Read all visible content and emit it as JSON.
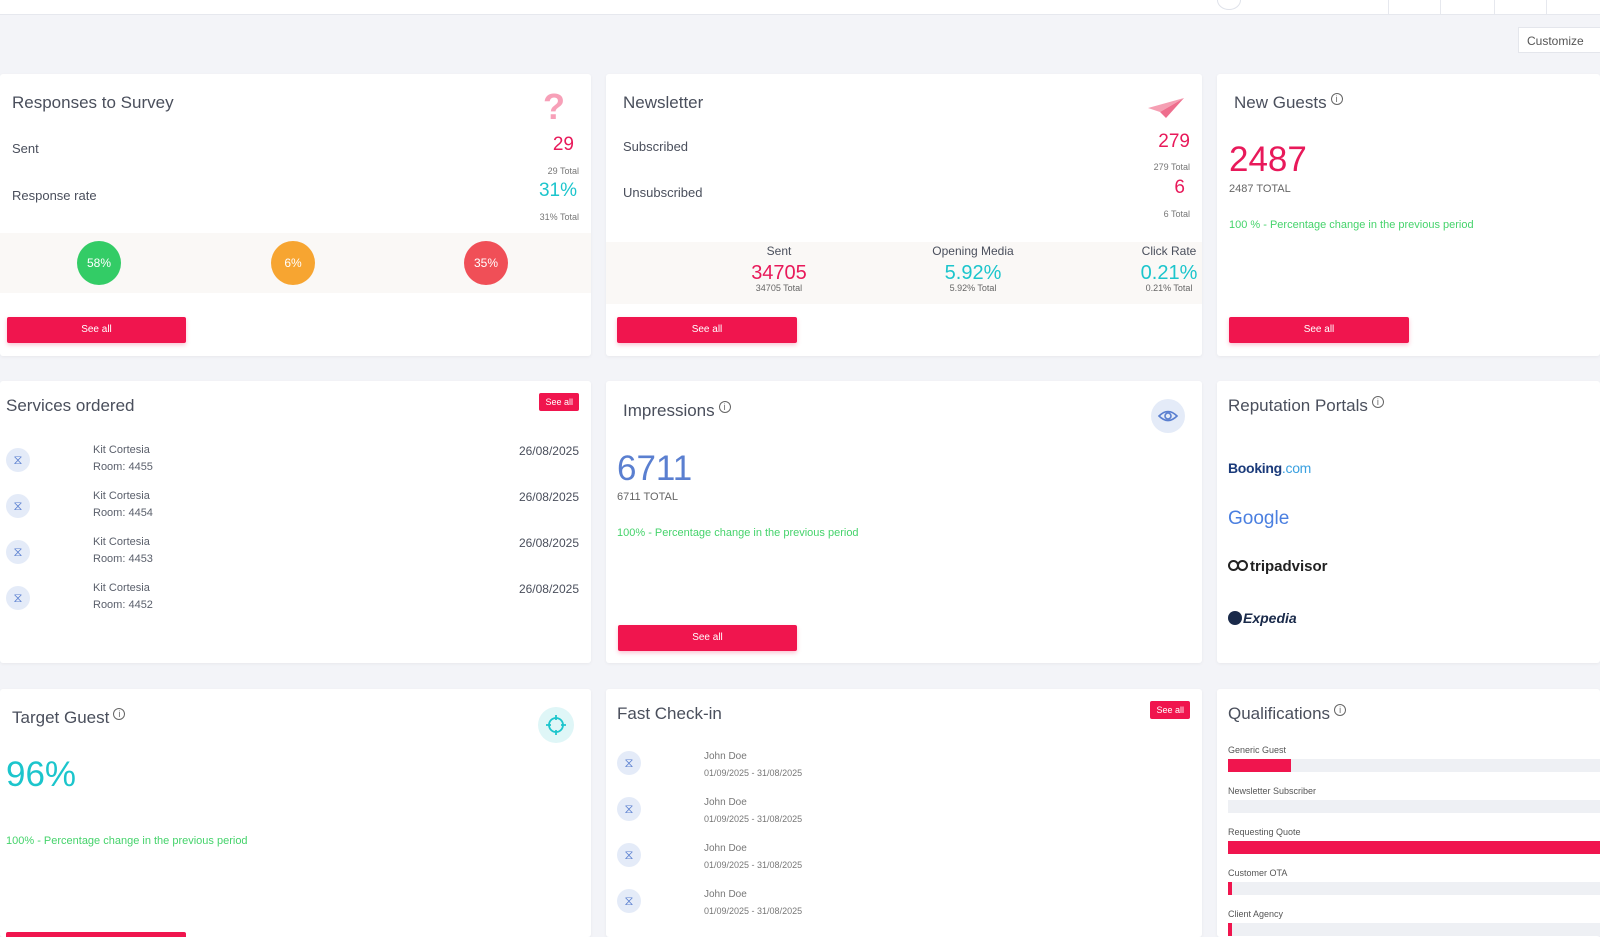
{
  "toolbar": {
    "customize_label": "Customize"
  },
  "survey": {
    "title": "Responses to Survey",
    "icon": "question-icon",
    "sent_label": "Sent",
    "sent_value": "29",
    "sent_total": "29 Total",
    "rate_label": "Response rate",
    "rate_value": "31%",
    "rate_total": "31% Total",
    "circles": [
      {
        "label": "58%",
        "color": "#33cc66"
      },
      {
        "label": "6%",
        "color": "#f7a531"
      },
      {
        "label": "35%",
        "color": "#f04f57"
      }
    ],
    "see_all": "See all"
  },
  "newsletter": {
    "title": "Newsletter",
    "icon": "paper-plane-icon",
    "subscribed_label": "Subscribed",
    "subscribed_value": "279",
    "subscribed_total": "279 Total",
    "unsubscribed_label": "Unsubscribed",
    "unsubscribed_value": "6",
    "unsubscribed_total": "6 Total",
    "stats": [
      {
        "label": "Sent",
        "value": "34705",
        "sub": "34705 Total",
        "color": "#e8195a"
      },
      {
        "label": "Opening Media",
        "value": "5.92%",
        "sub": "5.92% Total",
        "color": "#1cc5cc"
      },
      {
        "label": "Click Rate",
        "value": "0.21%",
        "sub": "0.21% Total",
        "color": "#1cc5cc"
      }
    ],
    "see_all": "See all"
  },
  "new_guests": {
    "title": "New Guests",
    "value": "2487",
    "total": "2487 TOTAL",
    "change": "100 % - Percentage change in the previous period",
    "see_all": "See all"
  },
  "services": {
    "title": "Services ordered",
    "see_all": "See all",
    "rows": [
      {
        "name": "Kit Cortesia",
        "room": "Room: 4455",
        "date": "26/08/2025"
      },
      {
        "name": "Kit Cortesia",
        "room": "Room: 4454",
        "date": "26/08/2025"
      },
      {
        "name": "Kit Cortesia",
        "room": "Room: 4453",
        "date": "26/08/2025"
      },
      {
        "name": "Kit Cortesia",
        "room": "Room: 4452",
        "date": "26/08/2025"
      }
    ]
  },
  "impressions": {
    "title": "Impressions",
    "icon": "eye-icon",
    "value": "6711",
    "total": "6711 TOTAL",
    "change": "100% - Percentage change in the previous period",
    "see_all": "See all"
  },
  "reputation": {
    "title": "Reputation Portals",
    "portals": [
      {
        "name": "Booking",
        "suffix": ".com"
      },
      {
        "name": "Google"
      },
      {
        "name": "tripadvisor"
      },
      {
        "name": "Expedia"
      }
    ]
  },
  "target": {
    "title": "Target Guest",
    "icon": "crosshair-icon",
    "value": "96%",
    "change": "100% - Percentage change in the previous period"
  },
  "checkin": {
    "title": "Fast Check-in",
    "see_all": "See all",
    "rows": [
      {
        "name": "John Doe",
        "dates": "01/09/2025 - 31/08/2025"
      },
      {
        "name": "John Doe",
        "dates": "01/09/2025 - 31/08/2025"
      },
      {
        "name": "John Doe",
        "dates": "01/09/2025 - 31/08/2025"
      },
      {
        "name": "John Doe",
        "dates": "01/09/2025 - 31/08/2025"
      }
    ]
  },
  "qualifications": {
    "title": "Qualifications",
    "items": [
      {
        "label": "Generic Guest",
        "fill": 0.17
      },
      {
        "label": "Newsletter Subscriber",
        "fill": 0
      },
      {
        "label": "Requesting Quote",
        "fill": 1.0
      },
      {
        "label": "Customer OTA",
        "fill": 0.01
      },
      {
        "label": "Client Agency",
        "fill": 0.01
      }
    ]
  }
}
